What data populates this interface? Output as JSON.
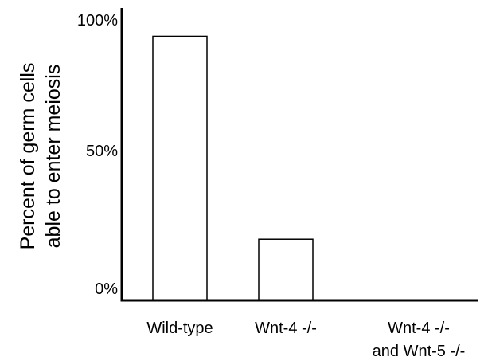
{
  "chart_data": {
    "type": "bar",
    "title": "",
    "xlabel": "",
    "ylabel_lines": [
      "Percent of germ cells",
      "able to enter meiosis"
    ],
    "ylim": [
      0,
      100
    ],
    "yticks": [
      {
        "value": 0,
        "label": "0%"
      },
      {
        "value": 50,
        "label": "50%"
      },
      {
        "value": 100,
        "label": "100%"
      }
    ],
    "categories": [
      {
        "lines": [
          "Wild-type"
        ]
      },
      {
        "lines": [
          "Wnt-4 -/-"
        ]
      },
      {
        "lines": [
          "Wnt-4 -/-",
          "and Wnt-5 -/-"
        ]
      }
    ],
    "values": [
      95,
      22,
      0
    ],
    "grid": false,
    "legend": "none",
    "colors": {
      "bar_fill": "#ffffff",
      "bar_stroke": "#000000",
      "axis": "#000000"
    }
  }
}
